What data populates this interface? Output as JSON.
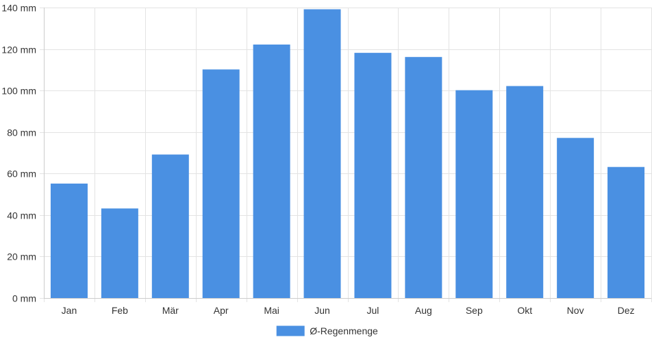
{
  "chart_data": {
    "type": "bar",
    "categories": [
      "Jan",
      "Feb",
      "Mär",
      "Apr",
      "Mai",
      "Jun",
      "Jul",
      "Aug",
      "Sep",
      "Okt",
      "Nov",
      "Dez"
    ],
    "series": [
      {
        "name": "Ø-Regenmenge",
        "color": "#4a90e2",
        "values": [
          55,
          43,
          69,
          110,
          122,
          139,
          118,
          116,
          100,
          102,
          77,
          63
        ]
      }
    ],
    "ylim": [
      0,
      140
    ],
    "y_ticks": [
      0,
      20,
      40,
      60,
      80,
      100,
      120,
      140
    ],
    "y_unit": "mm",
    "grid": true,
    "legend_position": "bottom-center",
    "title": "",
    "xlabel": "",
    "ylabel": ""
  },
  "colors": {
    "bar": "#4a90e2",
    "bar_border": "#4a90e2",
    "grid": "#e3e3e3",
    "axis": "#cccccc",
    "text": "#333333"
  }
}
